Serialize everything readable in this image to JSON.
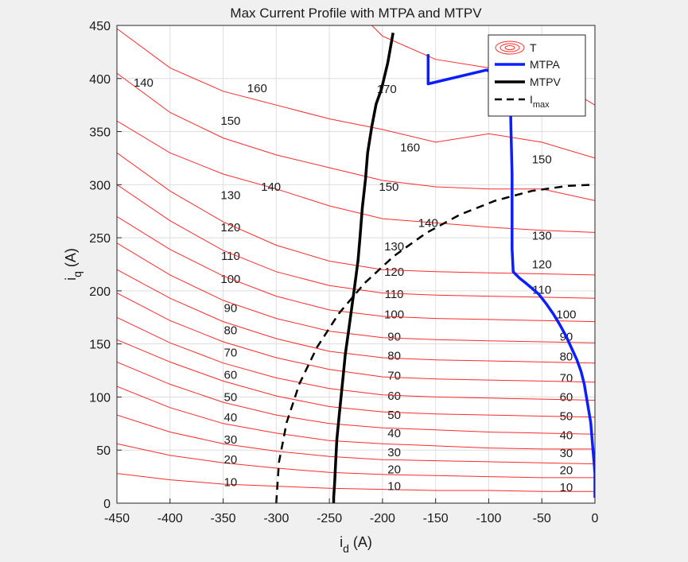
{
  "chart_data": {
    "type": "line",
    "title": "Max Current Profile with MTPA and MTPV",
    "xlabel": {
      "main": "i",
      "sub": "d",
      "unit": " (A)"
    },
    "ylabel": {
      "main": "i",
      "sub": "q",
      "unit": " (A)"
    },
    "xlim": [
      -450,
      0
    ],
    "ylim": [
      0,
      450
    ],
    "xticks": [
      -450,
      -400,
      -350,
      -300,
      -250,
      -200,
      -150,
      -100,
      -50,
      0
    ],
    "yticks": [
      0,
      50,
      100,
      150,
      200,
      250,
      300,
      350,
      400,
      450
    ],
    "grid": true,
    "legend": {
      "placement": "top-right",
      "entries": [
        {
          "label": "T"
        },
        {
          "label": "MTPA"
        },
        {
          "label": "MTPV"
        },
        {
          "label": "I",
          "sub": "max"
        }
      ]
    },
    "colors": {
      "torque": "#ff2a2a",
      "mtpa": "#0a1eff",
      "mtpv": "#000000",
      "imax": "#000000",
      "background": "#f0f0f0",
      "grid": "#dedede"
    },
    "torque_contours": [
      {
        "level": 10,
        "points": [
          [
            -450,
            28
          ],
          [
            -400,
            22
          ],
          [
            -350,
            18
          ],
          [
            -300,
            16
          ],
          [
            -250,
            14
          ],
          [
            -200,
            13
          ],
          [
            -150,
            12
          ],
          [
            -100,
            12
          ],
          [
            -50,
            11
          ],
          [
            0,
            11
          ]
        ],
        "labels": [
          [
            -343,
            20
          ],
          [
            -189,
            16
          ],
          [
            -27,
            15
          ]
        ]
      },
      {
        "level": 20,
        "points": [
          [
            -450,
            56
          ],
          [
            -400,
            45
          ],
          [
            -350,
            38
          ],
          [
            -300,
            33
          ],
          [
            -250,
            29
          ],
          [
            -200,
            27
          ],
          [
            -150,
            26
          ],
          [
            -100,
            25
          ],
          [
            -50,
            24
          ],
          [
            0,
            24
          ]
        ],
        "labels": [
          [
            -343,
            41
          ],
          [
            -189,
            32
          ],
          [
            -27,
            31
          ]
        ]
      },
      {
        "level": 30,
        "points": [
          [
            -450,
            83
          ],
          [
            -400,
            67
          ],
          [
            -350,
            56
          ],
          [
            -300,
            49
          ],
          [
            -250,
            44
          ],
          [
            -200,
            41
          ],
          [
            -150,
            40
          ],
          [
            -100,
            39
          ],
          [
            -50,
            38
          ],
          [
            0,
            37
          ]
        ],
        "labels": [
          [
            -343,
            60
          ],
          [
            -189,
            48
          ],
          [
            -27,
            47
          ]
        ]
      },
      {
        "level": 40,
        "points": [
          [
            -450,
            110
          ],
          [
            -400,
            90
          ],
          [
            -350,
            75
          ],
          [
            -300,
            66
          ],
          [
            -250,
            59
          ],
          [
            -200,
            56
          ],
          [
            -150,
            54
          ],
          [
            -100,
            52
          ],
          [
            -50,
            51
          ],
          [
            0,
            51
          ]
        ],
        "labels": [
          [
            -343,
            81
          ],
          [
            -189,
            66
          ],
          [
            -27,
            64
          ]
        ]
      },
      {
        "level": 50,
        "points": [
          [
            -450,
            133
          ],
          [
            -400,
            112
          ],
          [
            -350,
            95
          ],
          [
            -300,
            83
          ],
          [
            -250,
            75
          ],
          [
            -200,
            71
          ],
          [
            -150,
            69
          ],
          [
            -100,
            67
          ],
          [
            -50,
            66
          ],
          [
            0,
            65
          ]
        ],
        "labels": [
          [
            -343,
            100
          ],
          [
            -189,
            83
          ],
          [
            -27,
            82
          ]
        ]
      },
      {
        "level": 60,
        "points": [
          [
            -450,
            154
          ],
          [
            -400,
            133
          ],
          [
            -350,
            115
          ],
          [
            -300,
            101
          ],
          [
            -250,
            91
          ],
          [
            -200,
            86
          ],
          [
            -150,
            84
          ],
          [
            -100,
            83
          ],
          [
            -50,
            82
          ],
          [
            0,
            81
          ]
        ],
        "labels": [
          [
            -343,
            121
          ],
          [
            -189,
            101
          ],
          [
            -27,
            100
          ]
        ]
      },
      {
        "level": 70,
        "points": [
          [
            -450,
            175
          ],
          [
            -400,
            151
          ],
          [
            -350,
            132
          ],
          [
            -300,
            118
          ],
          [
            -250,
            108
          ],
          [
            -200,
            102
          ],
          [
            -150,
            100
          ],
          [
            -100,
            99
          ],
          [
            -50,
            98
          ],
          [
            0,
            97
          ]
        ],
        "labels": [
          [
            -343,
            142
          ],
          [
            -189,
            120
          ],
          [
            -27,
            118
          ]
        ]
      },
      {
        "level": 80,
        "points": [
          [
            -450,
            198
          ],
          [
            -400,
            172
          ],
          [
            -350,
            152
          ],
          [
            -300,
            137
          ],
          [
            -250,
            126
          ],
          [
            -200,
            119
          ],
          [
            -150,
            117
          ],
          [
            -100,
            116
          ],
          [
            -50,
            115
          ],
          [
            0,
            114
          ]
        ],
        "labels": [
          [
            -343,
            163
          ],
          [
            -189,
            139
          ],
          [
            -27,
            138
          ]
        ]
      },
      {
        "level": 90,
        "points": [
          [
            -450,
            220
          ],
          [
            -400,
            193
          ],
          [
            -350,
            171
          ],
          [
            -300,
            155
          ],
          [
            -250,
            143
          ],
          [
            -200,
            137
          ],
          [
            -150,
            135
          ],
          [
            -100,
            134
          ],
          [
            -50,
            133
          ],
          [
            0,
            132
          ]
        ],
        "labels": [
          [
            -343,
            184
          ],
          [
            -189,
            157
          ],
          [
            -27,
            157
          ]
        ]
      },
      {
        "level": 100,
        "points": [
          [
            -450,
            245
          ],
          [
            -400,
            215
          ],
          [
            -350,
            191
          ],
          [
            -300,
            174
          ],
          [
            -250,
            162
          ],
          [
            -200,
            156
          ],
          [
            -150,
            154
          ],
          [
            -100,
            153
          ],
          [
            -50,
            152
          ],
          [
            0,
            151
          ]
        ],
        "labels": [
          [
            -343,
            211
          ],
          [
            -189,
            178
          ],
          [
            -27,
            178
          ]
        ]
      },
      {
        "level": 110,
        "points": [
          [
            -450,
            270
          ],
          [
            -400,
            239
          ],
          [
            -350,
            214
          ],
          [
            -300,
            195
          ],
          [
            -250,
            182
          ],
          [
            -200,
            176
          ],
          [
            -150,
            174
          ],
          [
            -100,
            173
          ],
          [
            -50,
            172
          ],
          [
            0,
            171
          ]
        ],
        "labels": [
          [
            -343,
            233
          ],
          [
            -189,
            197
          ],
          [
            -50,
            201
          ]
        ]
      },
      {
        "level": 120,
        "points": [
          [
            -450,
            300
          ],
          [
            -400,
            266
          ],
          [
            -350,
            238
          ],
          [
            -300,
            218
          ],
          [
            -250,
            205
          ],
          [
            -200,
            198
          ],
          [
            -150,
            196
          ],
          [
            -100,
            195
          ],
          [
            -50,
            194
          ],
          [
            0,
            193
          ]
        ],
        "labels": [
          [
            -343,
            260
          ],
          [
            -189,
            218
          ],
          [
            -50,
            225
          ]
        ]
      },
      {
        "level": 130,
        "points": [
          [
            -450,
            330
          ],
          [
            -400,
            294
          ],
          [
            -350,
            265
          ],
          [
            -300,
            243
          ],
          [
            -250,
            228
          ],
          [
            -200,
            220
          ],
          [
            -150,
            218
          ],
          [
            -100,
            217
          ],
          [
            -50,
            216
          ],
          [
            0,
            215
          ]
        ],
        "labels": [
          [
            -343,
            290
          ],
          [
            -189,
            242
          ],
          [
            -50,
            252
          ]
        ]
      },
      {
        "level": 140,
        "points": [
          [
            -450,
            360
          ],
          [
            -400,
            330
          ],
          [
            -350,
            310
          ],
          [
            -300,
            296
          ],
          [
            -250,
            280
          ],
          [
            -200,
            268
          ],
          [
            -150,
            264
          ],
          [
            -100,
            260
          ],
          [
            -50,
            257
          ],
          [
            0,
            255
          ]
        ],
        "labels": [
          [
            -425,
            396
          ],
          [
            -305,
            298
          ],
          [
            -157,
            264
          ]
        ]
      },
      {
        "level": 150,
        "points": [
          [
            -450,
            405
          ],
          [
            -400,
            368
          ],
          [
            -350,
            344
          ],
          [
            -300,
            328
          ],
          [
            -250,
            316
          ],
          [
            -200,
            304
          ],
          [
            -150,
            298
          ],
          [
            -100,
            296
          ],
          [
            -50,
            296
          ],
          [
            0,
            285
          ]
        ],
        "labels": [
          [
            -343,
            360
          ],
          [
            -194,
            298
          ],
          [
            -50,
            324
          ]
        ]
      },
      {
        "level": 160,
        "points": [
          [
            -450,
            447
          ],
          [
            -400,
            410
          ],
          [
            -350,
            388
          ],
          [
            -300,
            375
          ],
          [
            -250,
            362
          ],
          [
            -200,
            352
          ],
          [
            -150,
            340
          ],
          [
            -100,
            348
          ],
          [
            -50,
            340
          ],
          [
            0,
            325
          ]
        ],
        "labels": [
          [
            -318,
            391
          ],
          [
            -174,
            335
          ]
        ]
      },
      {
        "level": 170,
        "points": [
          [
            -210,
            450
          ],
          [
            -200,
            440
          ],
          [
            -150,
            418
          ],
          [
            -100,
            410
          ],
          [
            -50,
            405
          ],
          [
            0,
            375
          ]
        ],
        "labels": [
          [
            -196,
            390
          ]
        ]
      }
    ],
    "series": [
      {
        "name": "MTPA",
        "x": [
          -157,
          -157,
          -102,
          -80,
          -79,
          -78,
          -78,
          -78,
          -77,
          -75,
          -71,
          -66,
          -60,
          -53,
          -46,
          -39,
          -33,
          -27,
          -22,
          -17,
          -13,
          -10,
          -8,
          -6,
          -4,
          -3,
          -2,
          -1,
          0,
          0
        ],
        "y": [
          423,
          395,
          408,
          398,
          350,
          310,
          270,
          240,
          218,
          216,
          212,
          208,
          203,
          197,
          188,
          178,
          168,
          157,
          146,
          135,
          124,
          112,
          100,
          88,
          76,
          64,
          52,
          40,
          28,
          5
        ]
      },
      {
        "name": "MTPV",
        "x": [
          -190,
          -195,
          -201,
          -206,
          -210,
          -214,
          -216,
          -219,
          -221,
          -223,
          -226,
          -229,
          -232,
          -235,
          -237,
          -239,
          -241,
          -243,
          -244,
          -245,
          -246,
          -246
        ],
        "y": [
          443,
          415,
          390,
          376,
          355,
          330,
          305,
          278,
          252,
          229,
          206,
          184,
          162,
          140,
          120,
          100,
          80,
          60,
          40,
          20,
          5,
          0
        ]
      },
      {
        "name": "Imax",
        "x": [
          -300,
          -297.5,
          -290.2,
          -278.2,
          -261.6,
          -241.0,
          -216.7,
          -189.3,
          -159.2,
          -127.2,
          -93.9,
          -59.8,
          -25.4,
          0
        ],
        "y": [
          0,
          38.4,
          76.0,
          112.4,
          146.9,
          178.7,
          207.4,
          232.7,
          254.3,
          271.7,
          284.9,
          294.0,
          298.9,
          300
        ]
      }
    ]
  }
}
